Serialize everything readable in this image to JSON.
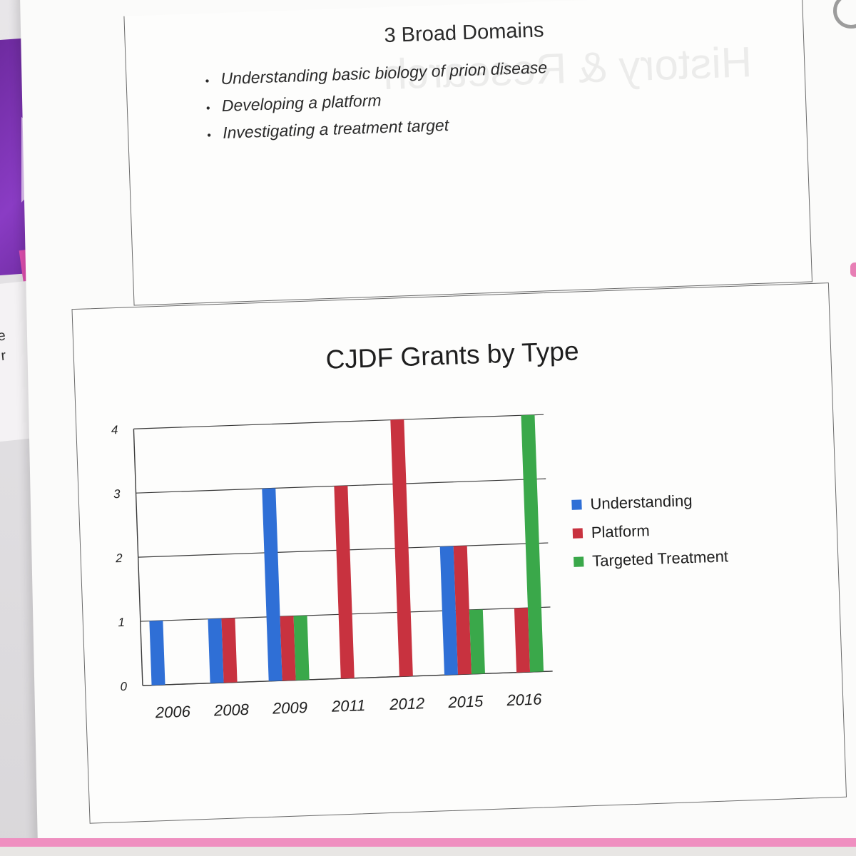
{
  "slide1": {
    "title": "3 Broad Domains",
    "bullets": [
      "Understanding basic biology of prion disease",
      "Developing a platform",
      "Investigating a treatment target"
    ]
  },
  "chart_data": {
    "type": "bar",
    "title": "CJDF Grants by Type",
    "xlabel": "",
    "ylabel": "",
    "categories": [
      "2006",
      "2008",
      "2009",
      "2011",
      "2012",
      "2015",
      "2016"
    ],
    "ylim": [
      0,
      4
    ],
    "yticks": [
      "0",
      "1",
      "2",
      "3",
      "4"
    ],
    "grid": true,
    "legend_position": "right",
    "series": [
      {
        "name": "Understanding",
        "color": "#2f6fd6",
        "values": [
          1,
          1,
          3,
          0,
          0,
          2,
          0
        ]
      },
      {
        "name": "Platform",
        "color": "#c8323f",
        "values": [
          0,
          1,
          1,
          3,
          4,
          2,
          1
        ]
      },
      {
        "name": "Targeted Treatment",
        "color": "#3aa84a",
        "values": [
          0,
          0,
          1,
          0,
          0,
          1,
          4
        ]
      }
    ]
  },
  "colors": {
    "purple_card": "#7a33b0",
    "pink_edge": "#ef8fc0",
    "orange_strip": "#f39a3e"
  },
  "side_fragments": [
    "e",
    "r"
  ]
}
